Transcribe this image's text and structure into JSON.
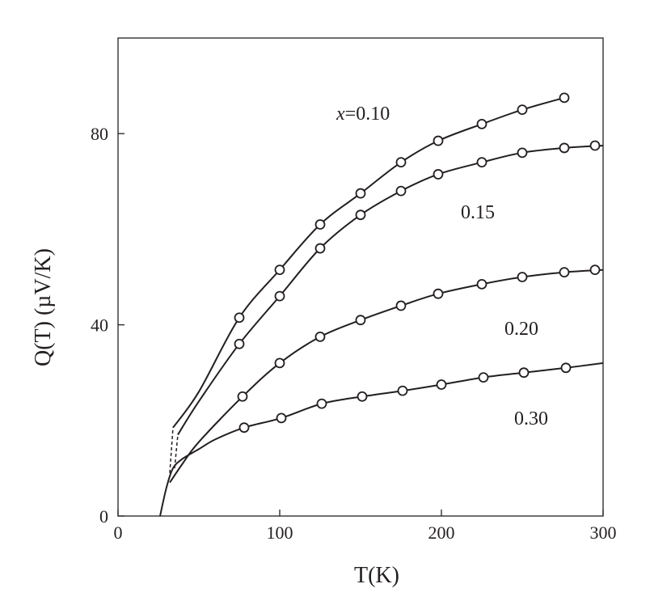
{
  "chart_data": {
    "type": "line",
    "title": "",
    "xlabel": "T(K)",
    "ylabel": "Q(T)  (µV/K)",
    "xlim": [
      0,
      300
    ],
    "ylim": [
      0,
      100
    ],
    "x_ticks": [
      0,
      100,
      200,
      300
    ],
    "y_ticks": [
      0,
      40,
      80
    ],
    "x_tick_labels": [
      "0",
      "100",
      "200",
      "300"
    ],
    "y_tick_labels": [
      "0",
      "40",
      "80"
    ],
    "grid": false,
    "legend": "none",
    "series": [
      {
        "label_prefix": "x",
        "label": "=0.10",
        "x": [
          75,
          100,
          125,
          150,
          175,
          198,
          225,
          250,
          276
        ],
        "y": [
          41.5,
          51.5,
          61,
          67.5,
          74,
          78.5,
          82,
          85,
          87.5
        ],
        "curve_x": [
          34,
          50,
          75,
          100,
          125,
          150,
          175,
          198,
          225,
          250,
          276
        ],
        "curve_y": [
          18.5,
          26,
          41.5,
          51.5,
          61,
          67.5,
          74,
          78.5,
          82,
          85,
          87.5
        ],
        "low_T_dashed": {
          "x": [
            32,
            34
          ],
          "y": [
            9,
            18.5
          ]
        }
      },
      {
        "label": "0.15",
        "x": [
          75,
          100,
          125,
          150,
          175,
          198,
          225,
          250,
          276,
          295
        ],
        "y": [
          36,
          46,
          56,
          63,
          68,
          71.5,
          74,
          76,
          77,
          77.5
        ],
        "curve_x": [
          37,
          50,
          75,
          100,
          125,
          150,
          175,
          198,
          225,
          250,
          276,
          300
        ],
        "curve_y": [
          17,
          24,
          36,
          46,
          56,
          63,
          68,
          71.5,
          74,
          76,
          77,
          77.5
        ],
        "low_T_dashed": {
          "x": [
            35,
            37
          ],
          "y": [
            10,
            17
          ]
        }
      },
      {
        "label": "0.20",
        "x": [
          77,
          100,
          125,
          150,
          175,
          198,
          225,
          250,
          276,
          295
        ],
        "y": [
          25,
          32,
          37.5,
          41,
          44,
          46.5,
          48.5,
          50,
          51,
          51.5
        ],
        "curve_x": [
          32,
          40,
          50,
          77,
          100,
          125,
          150,
          175,
          198,
          225,
          250,
          276,
          300
        ],
        "curve_y": [
          7,
          11,
          15.5,
          25,
          32,
          37.5,
          41,
          44,
          46.5,
          48.5,
          50,
          51,
          51.5
        ],
        "low_T_dashed": null
      },
      {
        "label": "0.30",
        "x": [
          78,
          101,
          126,
          151,
          176,
          200,
          226,
          251,
          277
        ],
        "y": [
          18.5,
          20.5,
          23.5,
          25,
          26.2,
          27.5,
          29,
          30,
          31
        ],
        "curve_x": [
          26,
          30,
          34,
          40,
          50,
          60,
          78,
          101,
          126,
          151,
          176,
          200,
          226,
          251,
          277,
          300
        ],
        "curve_y": [
          0,
          6,
          10,
          12,
          14,
          16,
          18.5,
          20.5,
          23.5,
          25,
          26.2,
          27.5,
          29,
          30,
          31,
          32
        ],
        "low_T_dashed": null
      }
    ]
  }
}
